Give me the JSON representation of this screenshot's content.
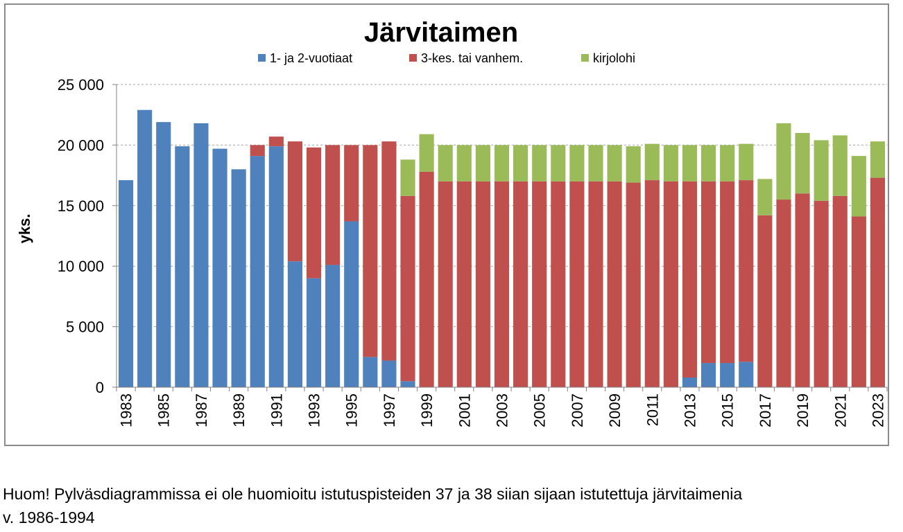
{
  "chart_data": {
    "type": "bar",
    "stacked": true,
    "title": "Järvitaimen",
    "ylabel": "yks.",
    "xlabel": "",
    "ylim": [
      0,
      25000
    ],
    "yticks": [
      0,
      5000,
      10000,
      15000,
      20000,
      25000
    ],
    "ytick_labels": [
      "0",
      "5 000",
      "10 000",
      "15 000",
      "20 000",
      "25 000"
    ],
    "grid": "horizontal-dashed",
    "legend": "top",
    "categories": [
      "1983",
      "1984",
      "1985",
      "1986",
      "1987",
      "1988",
      "1989",
      "1990",
      "1991",
      "1992",
      "1993",
      "1994",
      "1995",
      "1996",
      "1997",
      "1998",
      "1999",
      "2000",
      "2001",
      "2002",
      "2003",
      "2004",
      "2005",
      "2006",
      "2007",
      "2008",
      "2009",
      "2010",
      "2011",
      "2012",
      "2013",
      "2014",
      "2015",
      "2016",
      "2017",
      "2018",
      "2019",
      "2020",
      "2021",
      "2022",
      "2023"
    ],
    "xtick_labels": [
      "1983",
      "1985",
      "1987",
      "1989",
      "1991",
      "1993",
      "1995",
      "1997",
      "1999",
      "2001",
      "2003",
      "2005",
      "2007",
      "2009",
      "2011",
      "2013",
      "2015",
      "2017",
      "2019",
      "2021",
      "2023"
    ],
    "series": [
      {
        "name": "1- ja 2-vuotiaat",
        "color": "#4F81BD",
        "values": [
          17100,
          22900,
          21900,
          19900,
          21800,
          19700,
          18000,
          19100,
          19900,
          10400,
          9000,
          10100,
          13700,
          2500,
          2200,
          500,
          0,
          0,
          0,
          0,
          0,
          0,
          0,
          0,
          0,
          0,
          0,
          0,
          0,
          0,
          800,
          2000,
          2000,
          2100,
          0,
          0,
          0,
          0,
          0,
          0,
          0
        ]
      },
      {
        "name": "3-kes. tai vanhem.",
        "color": "#C0504D",
        "values": [
          0,
          0,
          0,
          0,
          0,
          0,
          0,
          900,
          800,
          9900,
          10800,
          9900,
          6300,
          17500,
          18100,
          15300,
          17800,
          17000,
          17000,
          17000,
          17000,
          17000,
          17000,
          17000,
          17000,
          17000,
          17000,
          16900,
          17100,
          17000,
          16200,
          15000,
          15000,
          15000,
          14200,
          15500,
          16000,
          15400,
          15800,
          14100,
          17300
        ]
      },
      {
        "name": "kirjolohi",
        "color": "#9BBB59",
        "values": [
          0,
          0,
          0,
          0,
          0,
          0,
          0,
          0,
          0,
          0,
          0,
          0,
          0,
          0,
          0,
          3000,
          3100,
          3000,
          3000,
          3000,
          3000,
          3000,
          3000,
          3000,
          3000,
          3000,
          3000,
          3000,
          3000,
          3000,
          3000,
          3000,
          3000,
          3000,
          3000,
          6300,
          5000,
          5000,
          5000,
          5000,
          3000
        ]
      }
    ]
  },
  "footnote": {
    "line1": "Huom! Pylväsdiagrammissa ei ole huomioitu istutuspisteiden 37 ja 38 siian sijaan istutettuja järvitaimenia",
    "line2": "v. 1986-1994"
  }
}
